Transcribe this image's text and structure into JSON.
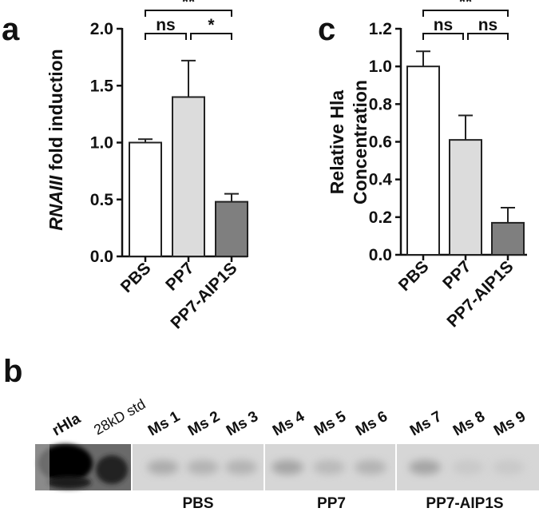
{
  "figure": {
    "panel_labels": {
      "a": "a",
      "b": "b",
      "c": "c"
    }
  },
  "chart_data": [
    {
      "id": "a",
      "type": "bar",
      "ylabel_italic": "RNAIII",
      "ylabel_rest": " fold induction",
      "categories": [
        "PBS",
        "PP7",
        "PP7-AIP1S"
      ],
      "values": [
        1.0,
        1.4,
        0.48
      ],
      "errors": [
        0.03,
        0.32,
        0.07
      ],
      "bar_colors": [
        "#ffffff",
        "#dcdcdc",
        "#7f7f7f"
      ],
      "ylim": [
        0,
        2.0
      ],
      "yticks": [
        0.0,
        0.5,
        1.0,
        1.5,
        2.0
      ],
      "ytick_labels": [
        "0.0",
        "0.5",
        "1.0",
        "1.5",
        "2.0"
      ],
      "significance": [
        {
          "from": 0,
          "to": 1,
          "label": "ns",
          "level": 1
        },
        {
          "from": 1,
          "to": 2,
          "label": "*",
          "level": 1
        },
        {
          "from": 0,
          "to": 2,
          "label": "**",
          "level": 2
        }
      ]
    },
    {
      "id": "c",
      "type": "bar",
      "ylabel_lines": [
        "Relative Hla",
        "Concentration"
      ],
      "categories": [
        "PBS",
        "PP7",
        "PP7-AIP1S"
      ],
      "values": [
        1.0,
        0.61,
        0.17
      ],
      "errors": [
        0.08,
        0.13,
        0.08
      ],
      "bar_colors": [
        "#ffffff",
        "#dcdcdc",
        "#7f7f7f"
      ],
      "ylim": [
        0,
        1.2
      ],
      "yticks": [
        0.0,
        0.2,
        0.4,
        0.6,
        0.8,
        1.0,
        1.2
      ],
      "ytick_labels": [
        "0.0",
        "0.2",
        "0.4",
        "0.6",
        "0.8",
        "1.0",
        "1.2"
      ],
      "significance": [
        {
          "from": 0,
          "to": 1,
          "label": "ns",
          "level": 1
        },
        {
          "from": 1,
          "to": 2,
          "label": "ns",
          "level": 1
        },
        {
          "from": 0,
          "to": 2,
          "label": "**",
          "level": 2
        }
      ]
    }
  ],
  "blot": {
    "lanes": [
      "rHla",
      "28kD std",
      "Ms 1",
      "Ms 2",
      "Ms 3",
      "Ms 4",
      "Ms 5",
      "Ms 6",
      "Ms 7",
      "Ms 8",
      "Ms 9"
    ],
    "groups": [
      "PBS",
      "PP7",
      "PP7-AIP1S"
    ],
    "band_intensity": [
      1.0,
      0.8,
      0.35,
      0.3,
      0.3,
      0.4,
      0.25,
      0.3,
      0.4,
      0.1,
      0.1
    ]
  }
}
